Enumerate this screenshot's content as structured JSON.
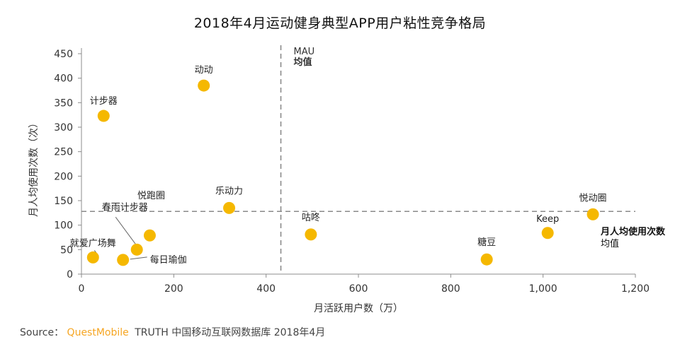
{
  "title": "2018年4月运动健身典型APP用户粘性竞争格局",
  "source": {
    "label": "Source：",
    "brand": "QuestMobile",
    "rest": "TRUTH 中国移动互联网数据库 2018年4月"
  },
  "chart_data": {
    "type": "scatter",
    "title": "2018年4月运动健身典型APP用户粘性竞争格局",
    "xlabel": "月活跃用户数（万）",
    "ylabel": "月人均使用次数（次）",
    "xlim": [
      0,
      1200
    ],
    "ylim": [
      0,
      450
    ],
    "x_ticks": [
      0,
      200,
      400,
      600,
      800,
      1000,
      1200
    ],
    "x_tick_labels": [
      "0",
      "200",
      "400",
      "600",
      "800",
      "1,000",
      "1,200"
    ],
    "y_ticks": [
      0,
      50,
      100,
      150,
      200,
      250,
      300,
      350,
      400,
      450
    ],
    "y_tick_labels": [
      "0",
      "50",
      "100",
      "150",
      "200",
      "250",
      "300",
      "350",
      "400",
      "450"
    ],
    "grid": false,
    "point_color": "#f5b800",
    "points": [
      {
        "name": "计步器",
        "x": 48,
        "y": 323
      },
      {
        "name": "动动",
        "x": 265,
        "y": 385
      },
      {
        "name": "乐动力",
        "x": 320,
        "y": 135
      },
      {
        "name": "悦跑圈",
        "x": 148,
        "y": 79
      },
      {
        "name": "春雨计步器",
        "x": 120,
        "y": 50
      },
      {
        "name": "就爱广场舞",
        "x": 25,
        "y": 34
      },
      {
        "name": "每日瑜伽",
        "x": 90,
        "y": 29
      },
      {
        "name": "咕咚",
        "x": 497,
        "y": 81
      },
      {
        "name": "糖豆",
        "x": 878,
        "y": 30
      },
      {
        "name": "Keep",
        "x": 1010,
        "y": 84
      },
      {
        "name": "悦动圈",
        "x": 1108,
        "y": 122
      }
    ],
    "reference_lines": [
      {
        "axis": "x",
        "value": 432,
        "label": [
          "MAU",
          "均值"
        ]
      },
      {
        "axis": "y",
        "value": 128,
        "label": [
          "月人均使用次数",
          "均值"
        ]
      }
    ]
  }
}
